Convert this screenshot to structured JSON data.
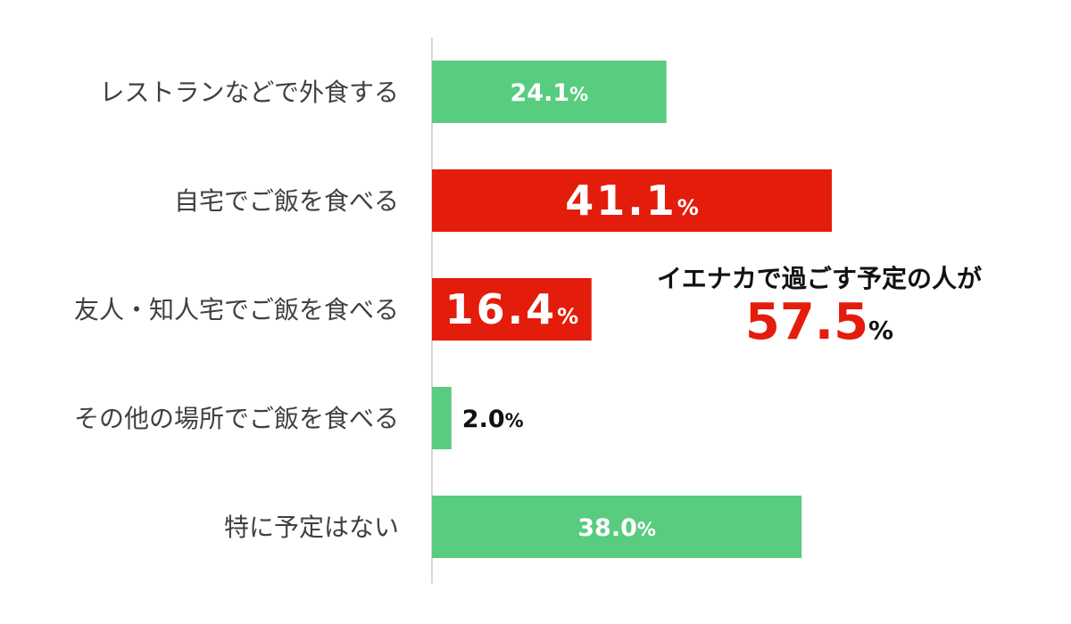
{
  "chart_data": {
    "type": "bar",
    "orientation": "horizontal",
    "title": "",
    "xlabel": "",
    "ylabel": "",
    "xlim": [
      0,
      60
    ],
    "grid": false,
    "legend": "none",
    "categories": [
      "レストランなどで外食する",
      "自宅でご飯を食べる",
      "友人・知人宅でご飯を食べる",
      "その他の場所でご飯を食べる",
      "特に予定はない"
    ],
    "values": [
      24.1,
      41.1,
      16.4,
      2.0,
      38.0
    ],
    "value_labels": [
      {
        "number": "24.1",
        "unit": "%"
      },
      {
        "number": "41.1",
        "unit": "%"
      },
      {
        "number": "16.4",
        "unit": "%"
      },
      {
        "number": "2.0",
        "unit": "%"
      },
      {
        "number": "38.0",
        "unit": "%"
      }
    ],
    "highlighted": [
      false,
      true,
      true,
      false,
      false
    ],
    "colors": {
      "normal": "#58cc7f",
      "highlight": "#e41c0c",
      "axis": "#d9d9d9",
      "category_text": "#404040",
      "label_on_bar": "#ffffff",
      "label_outside": "#111111",
      "callout_value": "#e41c0c",
      "callout_text": "#111111"
    },
    "annotation": {
      "text": "イエナカで過ごす予定の人が",
      "value": "57.5",
      "unit": "%"
    }
  }
}
